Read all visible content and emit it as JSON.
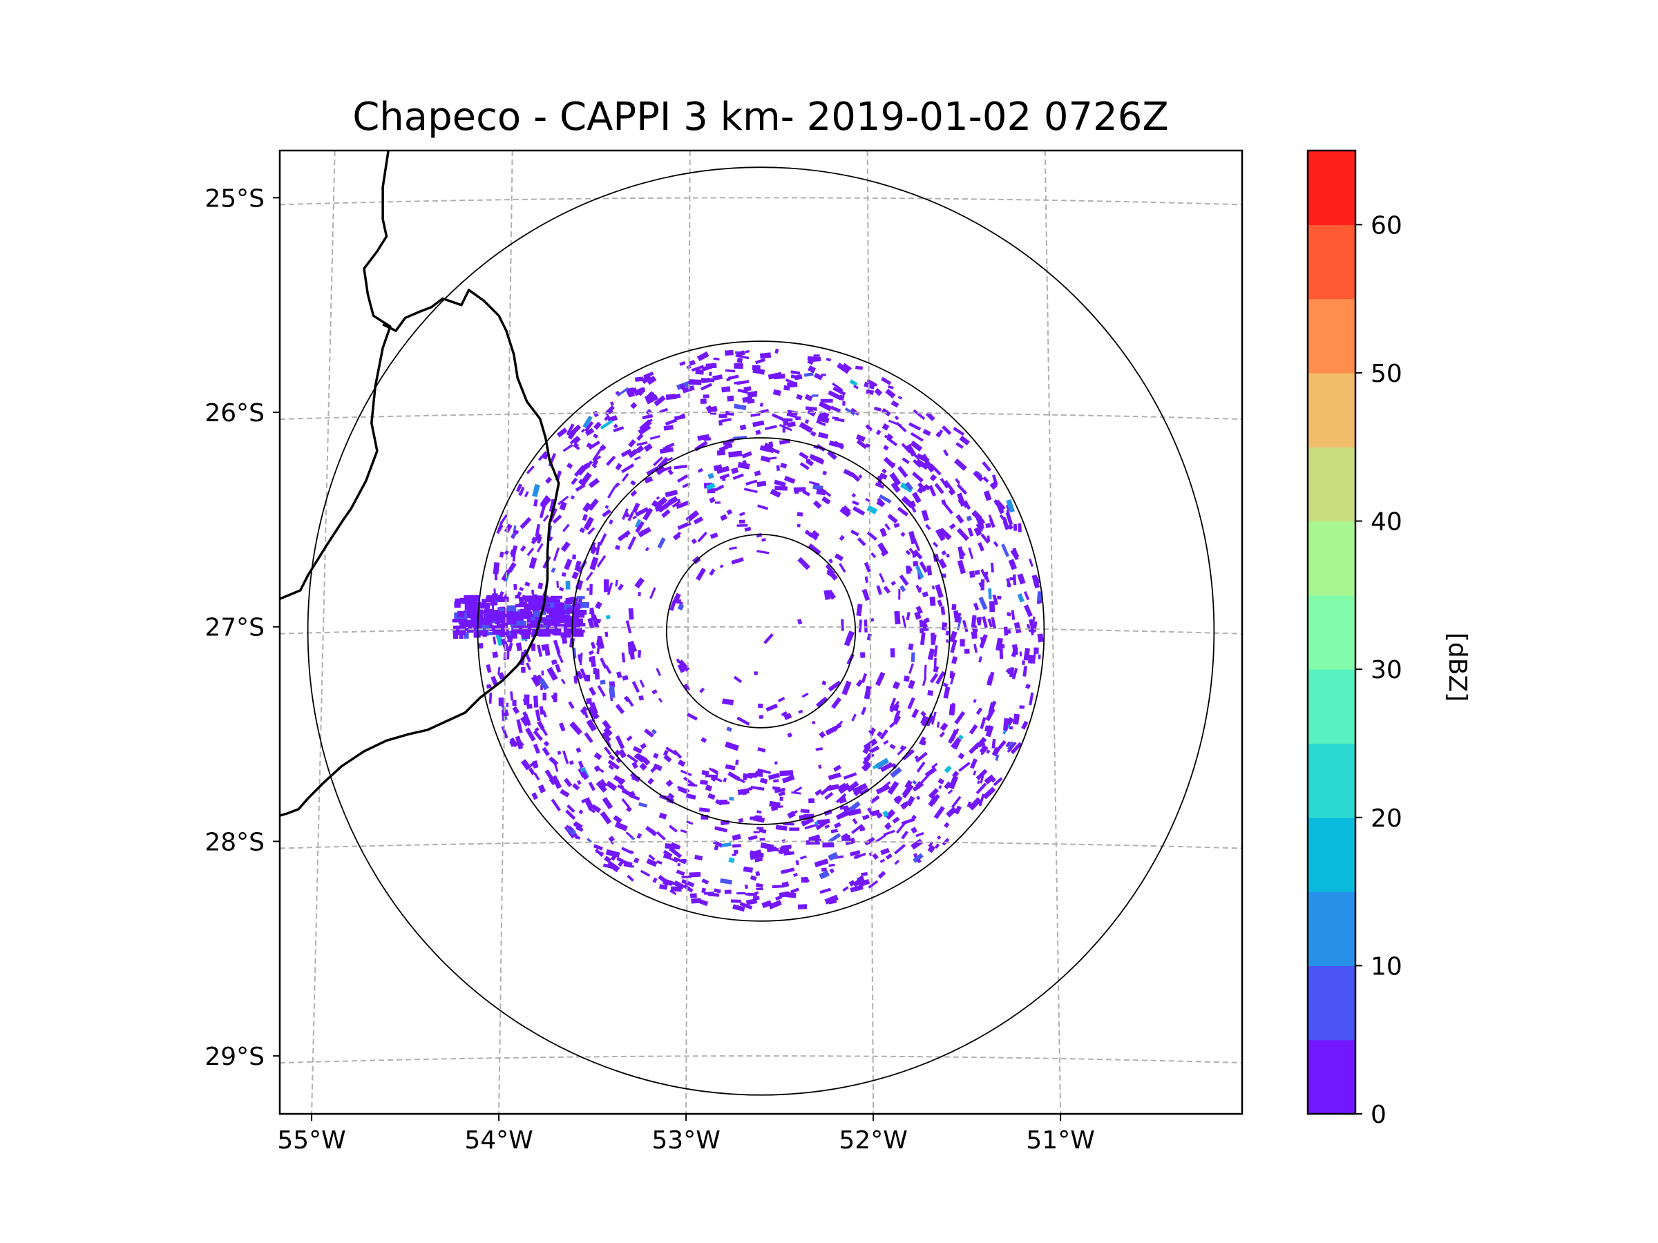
{
  "chart_data": {
    "type": "heatmap",
    "title": "Chapeco - CAPPI 3 km- 2019-01-02 0726Z",
    "xlabel": "",
    "ylabel": "",
    "xlim": [
      -55.17,
      -50.03
    ],
    "ylim": [
      -29.27,
      -24.78
    ],
    "x_ticks": [
      {
        "value": -55,
        "label": "55°W"
      },
      {
        "value": -54,
        "label": "54°W"
      },
      {
        "value": -53,
        "label": "53°W"
      },
      {
        "value": -52,
        "label": "52°W"
      },
      {
        "value": -51,
        "label": "51°W"
      }
    ],
    "y_ticks": [
      {
        "value": -25,
        "label": "25°S"
      },
      {
        "value": -26,
        "label": "26°S"
      },
      {
        "value": -27,
        "label": "27°S"
      },
      {
        "value": -28,
        "label": "28°S"
      },
      {
        "value": -29,
        "label": "29°S"
      }
    ],
    "grid": true,
    "radar_center": {
      "lon": -52.6,
      "lat": -27.02
    },
    "range_rings_km": [
      50,
      100,
      150,
      240
    ],
    "colorbar": {
      "label": "[dBZ]",
      "min": 0,
      "max": 65,
      "ticks": [
        0,
        10,
        20,
        30,
        40,
        50,
        60
      ],
      "levels": [
        0,
        5,
        10,
        15,
        20,
        25,
        30,
        35,
        40,
        45,
        50,
        55,
        60,
        65
      ],
      "colors": [
        "#7317ff",
        "#4b55f5",
        "#2791ea",
        "#0bbbde",
        "#2ad9d1",
        "#57f1c0",
        "#82fcab",
        "#a8f68f",
        "#cbdb80",
        "#f1bd6b",
        "#ff8e4e",
        "#ff5a33",
        "#ff1f1a"
      ]
    },
    "echo_summary": {
      "dominant_dbz_range": [
        0,
        5
      ],
      "strongest_echo_dbz_range": [
        10,
        20
      ]
    },
    "border_lines": [
      [
        [
          -54.59,
          -24.78
        ],
        [
          -54.62,
          -24.95
        ],
        [
          -54.62,
          -25.1
        ],
        [
          -54.6,
          -25.18
        ],
        [
          -54.65,
          -25.25
        ],
        [
          -54.72,
          -25.33
        ],
        [
          -54.7,
          -25.45
        ],
        [
          -54.67,
          -25.55
        ],
        [
          -54.58,
          -25.6
        ],
        [
          -54.62,
          -25.7
        ],
        [
          -54.66,
          -25.88
        ],
        [
          -54.68,
          -26.05
        ],
        [
          -54.65,
          -26.18
        ],
        [
          -54.71,
          -26.32
        ],
        [
          -54.79,
          -26.45
        ],
        [
          -54.83,
          -26.5
        ],
        [
          -54.92,
          -26.62
        ],
        [
          -55.02,
          -26.76
        ],
        [
          -55.06,
          -26.83
        ],
        [
          -55.17,
          -26.87
        ]
      ],
      [
        [
          -54.62,
          -25.59
        ],
        [
          -54.55,
          -25.62
        ],
        [
          -54.5,
          -25.56
        ],
        [
          -54.42,
          -25.53
        ],
        [
          -54.36,
          -25.51
        ],
        [
          -54.3,
          -25.47
        ],
        [
          -54.2,
          -25.5
        ],
        [
          -54.16,
          -25.43
        ],
        [
          -54.08,
          -25.48
        ],
        [
          -54.0,
          -25.55
        ],
        [
          -53.96,
          -25.62
        ],
        [
          -53.92,
          -25.73
        ],
        [
          -53.9,
          -25.84
        ],
        [
          -53.85,
          -25.95
        ],
        [
          -53.78,
          -26.03
        ],
        [
          -53.75,
          -26.12
        ],
        [
          -53.73,
          -26.22
        ],
        [
          -53.68,
          -26.33
        ],
        [
          -53.7,
          -26.42
        ],
        [
          -53.73,
          -26.52
        ],
        [
          -53.74,
          -26.65
        ],
        [
          -53.74,
          -26.78
        ],
        [
          -53.76,
          -26.9
        ],
        [
          -53.8,
          -27.03
        ],
        [
          -53.85,
          -27.12
        ],
        [
          -53.9,
          -27.18
        ],
        [
          -53.98,
          -27.25
        ],
        [
          -54.1,
          -27.33
        ],
        [
          -54.18,
          -27.4
        ],
        [
          -54.28,
          -27.44
        ],
        [
          -54.38,
          -27.48
        ],
        [
          -54.48,
          -27.5
        ],
        [
          -54.6,
          -27.53
        ],
        [
          -54.72,
          -27.58
        ],
        [
          -54.84,
          -27.65
        ],
        [
          -54.94,
          -27.73
        ],
        [
          -55.02,
          -27.8
        ],
        [
          -55.07,
          -27.85
        ],
        [
          -55.13,
          -27.87
        ],
        [
          -55.17,
          -27.88
        ]
      ]
    ]
  }
}
